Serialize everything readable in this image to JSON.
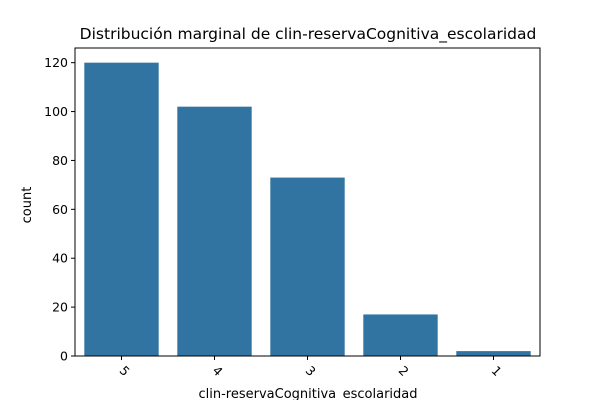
{
  "chart_data": {
    "type": "bar",
    "title": "Distribución marginal de clin-reservaCognitiva_escolaridad",
    "xlabel": "clin-reservaCognitiva_escolaridad",
    "ylabel": "count",
    "categories": [
      "5",
      "4",
      "3",
      "2",
      "1"
    ],
    "values": [
      120,
      102,
      73,
      17,
      2
    ],
    "yticks": [
      "0",
      "20",
      "40",
      "60",
      "80",
      "100",
      "120"
    ],
    "ylim": [
      0,
      126
    ],
    "x_tick_rotation": 45,
    "grid": false,
    "legend": "none",
    "bar_color": "#3274a1"
  }
}
